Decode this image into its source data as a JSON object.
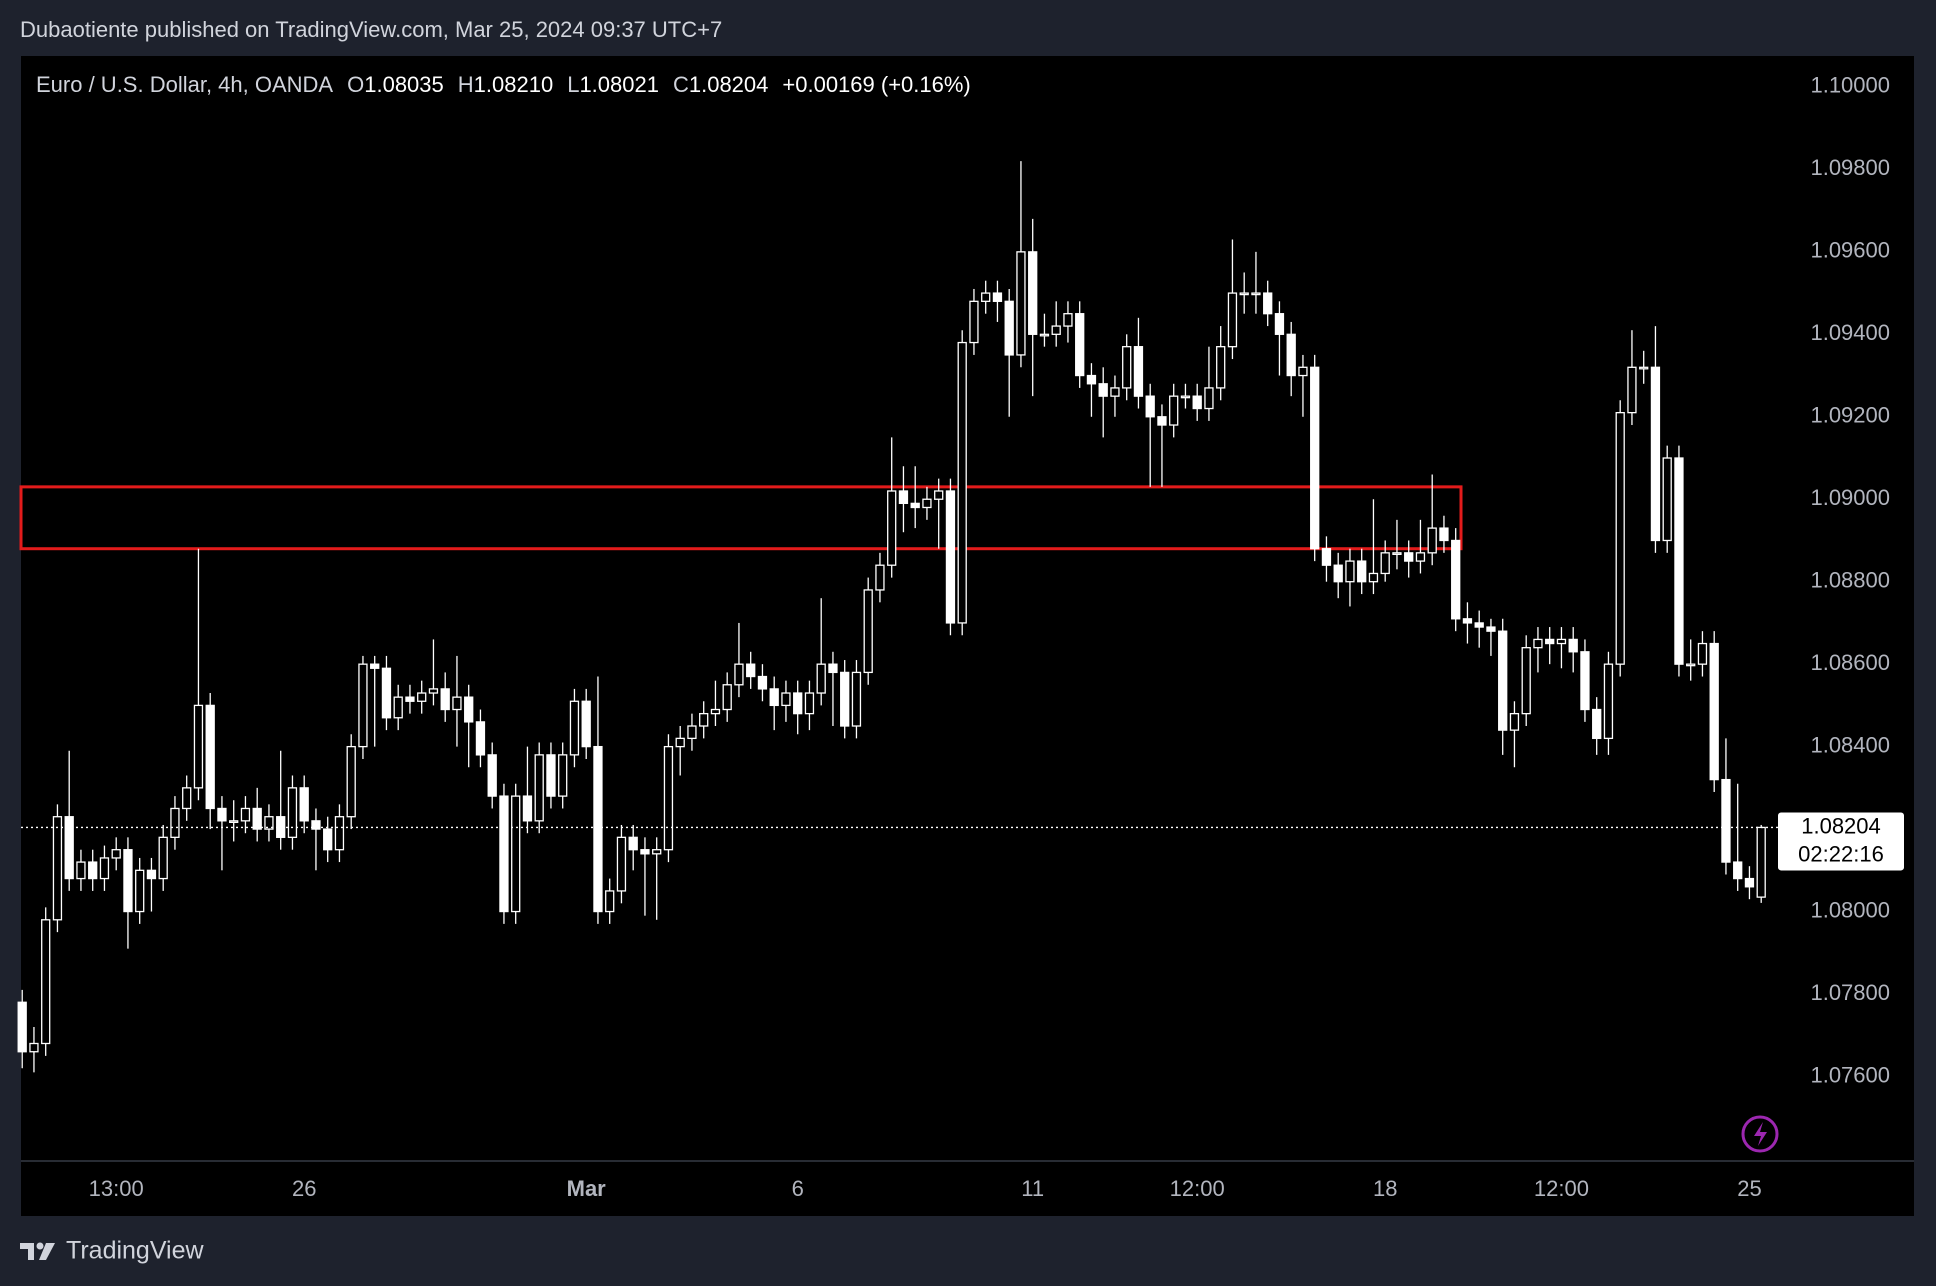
{
  "page_header": {
    "text": "Dubaotiente published on TradingView.com, Mar 25, 2024 09:37 UTC+7"
  },
  "footer": {
    "brand": "TradingView"
  },
  "chart_data": {
    "type": "candlestick",
    "header": {
      "symbol": "Euro / U.S. Dollar, 4h, OANDA",
      "fields": [
        {
          "key": "O",
          "value": "1.08035"
        },
        {
          "key": "H",
          "value": "1.08210"
        },
        {
          "key": "L",
          "value": "1.08021"
        },
        {
          "key": "C",
          "value": "1.08204"
        }
      ],
      "change": "+0.00169 (+0.16%)"
    },
    "categories": [
      null,
      null,
      null,
      null,
      null,
      null,
      null,
      null,
      "13:00",
      null,
      null,
      null,
      null,
      null,
      null,
      null,
      null,
      null,
      null,
      null,
      null,
      null,
      null,
      null,
      "26",
      null,
      null,
      null,
      null,
      null,
      null,
      null,
      null,
      null,
      null,
      null,
      null,
      null,
      null,
      null,
      null,
      null,
      null,
      null,
      null,
      null,
      null,
      null,
      "Mar",
      null,
      null,
      null,
      null,
      null,
      null,
      null,
      null,
      null,
      null,
      null,
      null,
      null,
      null,
      null,
      null,
      null,
      "6",
      null,
      null,
      null,
      null,
      null,
      null,
      null,
      null,
      null,
      null,
      null,
      null,
      null,
      null,
      null,
      null,
      null,
      null,
      null,
      "11",
      null,
      null,
      null,
      null,
      null,
      null,
      null,
      null,
      null,
      null,
      null,
      null,
      null,
      "12:00",
      null,
      null,
      null,
      null,
      null,
      null,
      null,
      null,
      null,
      null,
      null,
      null,
      null,
      null,
      null,
      "18",
      null,
      null,
      null,
      null,
      null,
      null,
      null,
      null,
      null,
      null,
      null,
      null,
      null,
      null,
      "12:00",
      null,
      null,
      null,
      null,
      null,
      null,
      null,
      null,
      null,
      null,
      null,
      null,
      null,
      null,
      null,
      "25",
      null
    ],
    "open": [
      1.0778,
      1.0766,
      1.0768,
      1.0798,
      1.0823,
      1.0808,
      1.0812,
      1.0808,
      1.0813,
      1.0815,
      1.08,
      1.081,
      1.0808,
      1.0818,
      1.0825,
      1.083,
      1.085,
      1.0825,
      1.0822,
      1.0822,
      1.0825,
      1.082,
      1.0823,
      1.0818,
      1.083,
      1.0822,
      1.082,
      1.0815,
      1.0823,
      1.084,
      1.086,
      1.0859,
      1.0847,
      1.0852,
      1.0851,
      1.0853,
      1.0854,
      1.0849,
      1.0852,
      1.0846,
      1.0838,
      1.0828,
      1.08,
      1.0828,
      1.0822,
      1.0838,
      1.0828,
      1.0838,
      1.0851,
      1.084,
      1.08,
      1.0805,
      1.0818,
      1.0815,
      1.0814,
      1.0815,
      1.084,
      1.0842,
      1.0845,
      1.0848,
      1.0849,
      1.0855,
      1.086,
      1.0857,
      1.0854,
      1.085,
      1.0853,
      1.0848,
      1.0853,
      1.086,
      1.0858,
      1.0845,
      1.0858,
      1.0878,
      1.0884,
      1.0902,
      1.0899,
      1.0898,
      1.09,
      1.0902,
      1.087,
      1.0938,
      1.0948,
      1.095,
      1.0948,
      1.0935,
      1.096,
      1.094,
      1.094,
      1.0942,
      1.0945,
      1.093,
      1.0928,
      1.0925,
      1.0927,
      1.0937,
      1.0925,
      1.092,
      1.0918,
      1.0925,
      1.0925,
      1.0922,
      1.0927,
      1.0937,
      1.095,
      1.095,
      1.095,
      1.0945,
      1.094,
      1.093,
      1.0932,
      1.0888,
      1.0884,
      1.088,
      1.0885,
      1.088,
      1.0882,
      1.0887,
      1.0887,
      1.0885,
      1.0887,
      1.0893,
      1.089,
      1.0871,
      1.087,
      1.0869,
      1.0868,
      1.0844,
      1.0848,
      1.0864,
      1.0866,
      1.0865,
      1.0866,
      1.0863,
      1.0849,
      1.0842,
      1.086,
      1.0921,
      1.0932,
      1.0932,
      1.089,
      1.091,
      1.086,
      1.086,
      1.0865,
      1.0832,
      1.0812,
      1.0808,
      1.08035
    ],
    "high": [
      1.0781,
      1.0772,
      1.0801,
      1.0826,
      1.0839,
      1.0815,
      1.0815,
      1.0816,
      1.0818,
      1.0818,
      1.0813,
      1.0813,
      1.0821,
      1.0828,
      1.0833,
      1.0888,
      1.0853,
      1.0828,
      1.0827,
      1.0828,
      1.083,
      1.0826,
      1.0839,
      1.0833,
      1.0833,
      1.0825,
      1.0823,
      1.0826,
      1.0843,
      1.0862,
      1.0862,
      1.0862,
      1.0855,
      1.0855,
      1.0856,
      1.0866,
      1.0858,
      1.0862,
      1.0855,
      1.0849,
      1.0841,
      1.0831,
      1.0831,
      1.084,
      1.0841,
      1.0841,
      1.0841,
      1.0854,
      1.0854,
      1.0857,
      1.0808,
      1.0821,
      1.0821,
      1.0818,
      1.0818,
      1.0843,
      1.0845,
      1.0848,
      1.0851,
      1.0856,
      1.0858,
      1.087,
      1.0863,
      1.086,
      1.0857,
      1.0856,
      1.0856,
      1.0856,
      1.0876,
      1.0863,
      1.0861,
      1.0861,
      1.0881,
      1.0887,
      1.0915,
      1.0908,
      1.0908,
      1.0903,
      1.0905,
      1.0905,
      1.0941,
      1.0951,
      1.0953,
      1.0953,
      1.0951,
      1.0982,
      1.0968,
      1.0945,
      1.0948,
      1.0948,
      1.0948,
      1.0933,
      1.0932,
      1.093,
      1.094,
      1.0944,
      1.0928,
      1.0923,
      1.0928,
      1.0928,
      1.0928,
      1.0937,
      1.0942,
      1.0963,
      1.0955,
      1.096,
      1.0953,
      1.0948,
      1.0943,
      1.0935,
      1.0935,
      1.0891,
      1.0887,
      1.0888,
      1.0888,
      1.09,
      1.089,
      1.0895,
      1.089,
      1.0895,
      1.0906,
      1.0896,
      1.0893,
      1.0875,
      1.0873,
      1.0871,
      1.0871,
      1.0851,
      1.0867,
      1.0869,
      1.0869,
      1.0869,
      1.0869,
      1.0866,
      1.0852,
      1.0863,
      1.0924,
      1.0941,
      1.0936,
      1.0942,
      1.0913,
      1.0913,
      1.0866,
      1.0868,
      1.0868,
      1.0842,
      1.0831,
      1.0811,
      1.0821
    ],
    "low": [
      1.0762,
      1.0761,
      1.0765,
      1.0795,
      1.0805,
      1.0805,
      1.0805,
      1.0805,
      1.081,
      1.0791,
      1.0797,
      1.08,
      1.0805,
      1.0815,
      1.0822,
      1.0827,
      1.082,
      1.081,
      1.0817,
      1.0819,
      1.0817,
      1.0817,
      1.0815,
      1.0815,
      1.0819,
      1.081,
      1.0812,
      1.0812,
      1.082,
      1.0837,
      1.084,
      1.0844,
      1.0844,
      1.0848,
      1.0848,
      1.085,
      1.0846,
      1.084,
      1.0835,
      1.0835,
      1.0825,
      1.0797,
      1.0797,
      1.0819,
      1.0819,
      1.0825,
      1.0825,
      1.0835,
      1.0837,
      1.0797,
      1.0797,
      1.0802,
      1.081,
      1.0799,
      1.0798,
      1.0812,
      1.0833,
      1.0839,
      1.0842,
      1.0845,
      1.0846,
      1.0852,
      1.0854,
      1.0851,
      1.0844,
      1.0846,
      1.0843,
      1.0844,
      1.085,
      1.0845,
      1.0842,
      1.0842,
      1.0855,
      1.0875,
      1.0881,
      1.0892,
      1.0893,
      1.0895,
      1.0888,
      1.0867,
      1.0867,
      1.0935,
      1.0945,
      1.0943,
      1.092,
      1.0932,
      1.0925,
      1.0937,
      1.0937,
      1.0938,
      1.0927,
      1.092,
      1.0915,
      1.092,
      1.0924,
      1.0922,
      1.0903,
      1.0903,
      1.0915,
      1.0922,
      1.0919,
      1.0919,
      1.0924,
      1.0934,
      1.0945,
      1.0945,
      1.0942,
      1.093,
      1.0925,
      1.092,
      1.0885,
      1.088,
      1.0876,
      1.0874,
      1.0877,
      1.0877,
      1.088,
      1.0883,
      1.0881,
      1.0882,
      1.0884,
      1.0887,
      1.0868,
      1.0865,
      1.0864,
      1.0862,
      1.0838,
      1.0835,
      1.0845,
      1.0858,
      1.086,
      1.0859,
      1.0858,
      1.0846,
      1.0838,
      1.0838,
      1.0857,
      1.0918,
      1.0928,
      1.0887,
      1.0887,
      1.0857,
      1.0856,
      1.0857,
      1.0829,
      1.0809,
      1.0805,
      1.0803,
      1.08021
    ],
    "close": [
      1.0766,
      1.0768,
      1.0798,
      1.0823,
      1.0808,
      1.0812,
      1.0808,
      1.0813,
      1.0815,
      1.08,
      1.081,
      1.0808,
      1.0818,
      1.0825,
      1.083,
      1.085,
      1.0825,
      1.0822,
      1.0822,
      1.0825,
      1.082,
      1.0823,
      1.0818,
      1.083,
      1.0822,
      1.082,
      1.0815,
      1.0823,
      1.084,
      1.086,
      1.0859,
      1.0847,
      1.0852,
      1.0851,
      1.0853,
      1.0854,
      1.0849,
      1.0852,
      1.0846,
      1.0838,
      1.0828,
      1.08,
      1.0828,
      1.0822,
      1.0838,
      1.0828,
      1.0838,
      1.0851,
      1.084,
      1.08,
      1.0805,
      1.0818,
      1.0815,
      1.0814,
      1.0815,
      1.084,
      1.0842,
      1.0845,
      1.0848,
      1.0849,
      1.0855,
      1.086,
      1.0857,
      1.0854,
      1.085,
      1.0853,
      1.0848,
      1.0853,
      1.086,
      1.0858,
      1.0845,
      1.0858,
      1.0878,
      1.0884,
      1.0902,
      1.0899,
      1.0898,
      1.09,
      1.0902,
      1.087,
      1.0938,
      1.0948,
      1.095,
      1.0948,
      1.0935,
      1.096,
      1.094,
      1.094,
      1.0942,
      1.0945,
      1.093,
      1.0928,
      1.0925,
      1.0927,
      1.0937,
      1.0925,
      1.092,
      1.0918,
      1.0925,
      1.0925,
      1.0922,
      1.0927,
      1.0937,
      1.095,
      1.095,
      1.095,
      1.0945,
      1.094,
      1.093,
      1.0932,
      1.0888,
      1.0884,
      1.088,
      1.0885,
      1.088,
      1.0882,
      1.0887,
      1.0887,
      1.0885,
      1.0887,
      1.0893,
      1.089,
      1.0871,
      1.087,
      1.0869,
      1.0868,
      1.0844,
      1.0848,
      1.0864,
      1.0866,
      1.0865,
      1.0866,
      1.0863,
      1.0849,
      1.0842,
      1.086,
      1.0921,
      1.0932,
      1.0932,
      1.089,
      1.091,
      1.086,
      1.086,
      1.0865,
      1.0832,
      1.0812,
      1.0808,
      1.0806,
      1.08204
    ],
    "colors": {
      "up_body": "#000000",
      "down_body": "#ffffff",
      "wick": "#ffffff"
    },
    "ylim": [
      1.07395,
      1.10075
    ],
    "yticks": [
      {
        "value": 1.076,
        "label": "1.07600"
      },
      {
        "value": 1.078,
        "label": "1.07800"
      },
      {
        "value": 1.08,
        "label": "1.08000"
      },
      {
        "value": 1.082,
        "label": "1.08200"
      },
      {
        "value": 1.084,
        "label": "1.08400"
      },
      {
        "value": 1.086,
        "label": "1.08600"
      },
      {
        "value": 1.088,
        "label": "1.08800"
      },
      {
        "value": 1.09,
        "label": "1.09000"
      },
      {
        "value": 1.092,
        "label": "1.09200"
      },
      {
        "value": 1.094,
        "label": "1.09400"
      },
      {
        "value": 1.096,
        "label": "1.09600"
      },
      {
        "value": 1.098,
        "label": "1.09800"
      },
      {
        "value": 1.1,
        "label": "1.10000"
      }
    ],
    "grid": false,
    "zone": {
      "ylim": [
        1.0888,
        1.0903
      ],
      "color": "#e31b1b"
    },
    "countdown": "02:22:16"
  }
}
